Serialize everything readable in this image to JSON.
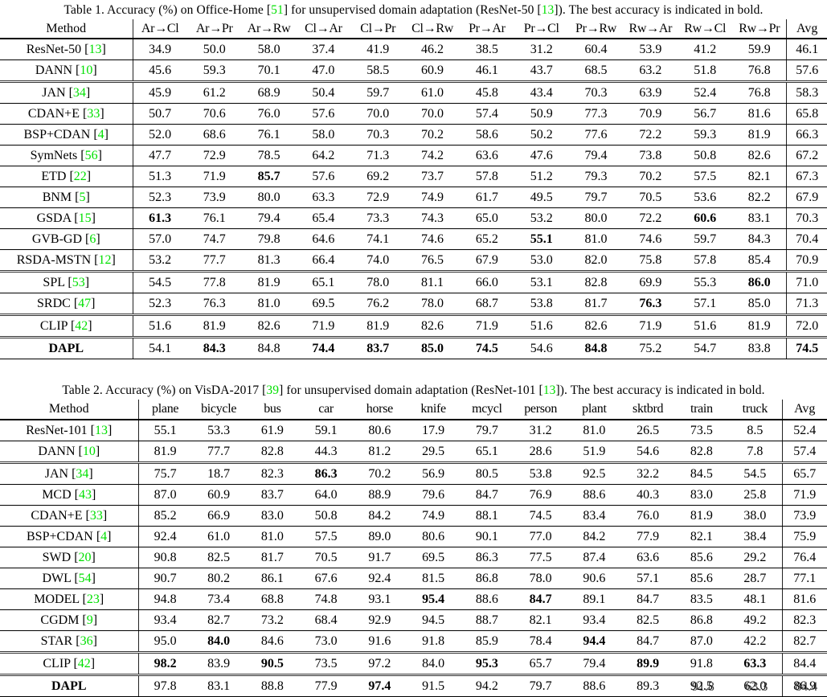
{
  "page": {
    "background": "#ffffff",
    "text_color": "#000000",
    "citation_color": "#00e000"
  },
  "tables": [
    {
      "id": "table1",
      "caption_parts": [
        {
          "t": "Table 1. Accuracy (%) on Office-Home ["
        },
        {
          "cite": "51"
        },
        {
          "t": "] for unsupervised domain adaptation (ResNet-50 ["
        },
        {
          "cite": "13"
        },
        {
          "t": "]). The best accuracy is indicated in bold."
        }
      ],
      "method_header": "Method",
      "avg_header": "Avg",
      "method_col_width": 165,
      "avg_col_width": 50,
      "columns": [
        "Ar→Cl",
        "Ar→Pr",
        "Ar→Rw",
        "Cl→Ar",
        "Cl→Pr",
        "Cl→Rw",
        "Pr→Ar",
        "Pr→Cl",
        "Pr→Rw",
        "Rw→Ar",
        "Rw→Cl",
        "Rw→Pr"
      ],
      "rows": [
        {
          "method": "ResNet-50",
          "cite": "13",
          "values": [
            "34.9",
            "50.0",
            "58.0",
            "37.4",
            "41.9",
            "46.2",
            "38.5",
            "31.2",
            "60.4",
            "53.9",
            "41.2",
            "59.9",
            "46.1"
          ],
          "bold": [],
          "sep": "thin"
        },
        {
          "method": "DANN",
          "cite": "10",
          "values": [
            "45.6",
            "59.3",
            "70.1",
            "47.0",
            "58.5",
            "60.9",
            "46.1",
            "43.7",
            "68.5",
            "63.2",
            "51.8",
            "76.8",
            "57.6"
          ],
          "bold": [],
          "sep": "double"
        },
        {
          "method": "JAN",
          "cite": "34",
          "values": [
            "45.9",
            "61.2",
            "68.9",
            "50.4",
            "59.7",
            "61.0",
            "45.8",
            "43.4",
            "70.3",
            "63.9",
            "52.4",
            "76.8",
            "58.3"
          ],
          "bold": [],
          "sep": "thin"
        },
        {
          "method": "CDAN+E",
          "cite": "33",
          "values": [
            "50.7",
            "70.6",
            "76.0",
            "57.6",
            "70.0",
            "70.0",
            "57.4",
            "50.9",
            "77.3",
            "70.9",
            "56.7",
            "81.6",
            "65.8"
          ],
          "bold": [],
          "sep": "thin"
        },
        {
          "method": "BSP+CDAN",
          "cite": "4",
          "values": [
            "52.0",
            "68.6",
            "76.1",
            "58.0",
            "70.3",
            "70.2",
            "58.6",
            "50.2",
            "77.6",
            "72.2",
            "59.3",
            "81.9",
            "66.3"
          ],
          "bold": [],
          "sep": "thin"
        },
        {
          "method": "SymNets",
          "cite": "56",
          "values": [
            "47.7",
            "72.9",
            "78.5",
            "64.2",
            "71.3",
            "74.2",
            "63.6",
            "47.6",
            "79.4",
            "73.8",
            "50.8",
            "82.6",
            "67.2"
          ],
          "bold": [],
          "sep": "thin"
        },
        {
          "method": "ETD",
          "cite": "22",
          "values": [
            "51.3",
            "71.9",
            "85.7",
            "57.6",
            "69.2",
            "73.7",
            "57.8",
            "51.2",
            "79.3",
            "70.2",
            "57.5",
            "82.1",
            "67.3"
          ],
          "bold": [
            2
          ],
          "sep": "thin"
        },
        {
          "method": "BNM",
          "cite": "5",
          "values": [
            "52.3",
            "73.9",
            "80.0",
            "63.3",
            "72.9",
            "74.9",
            "61.7",
            "49.5",
            "79.7",
            "70.5",
            "53.6",
            "82.2",
            "67.9"
          ],
          "bold": [],
          "sep": "thin"
        },
        {
          "method": "GSDA",
          "cite": "15",
          "values": [
            "61.3",
            "76.1",
            "79.4",
            "65.4",
            "73.3",
            "74.3",
            "65.0",
            "53.2",
            "80.0",
            "72.2",
            "60.6",
            "83.1",
            "70.3"
          ],
          "bold": [
            0,
            10
          ],
          "sep": "thin"
        },
        {
          "method": "GVB-GD",
          "cite": "6",
          "values": [
            "57.0",
            "74.7",
            "79.8",
            "64.6",
            "74.1",
            "74.6",
            "65.2",
            "55.1",
            "81.0",
            "74.6",
            "59.7",
            "84.3",
            "70.4"
          ],
          "bold": [
            7
          ],
          "sep": "thin"
        },
        {
          "method": "RSDA-MSTN",
          "cite": "12",
          "values": [
            "53.2",
            "77.7",
            "81.3",
            "66.4",
            "74.0",
            "76.5",
            "67.9",
            "53.0",
            "82.0",
            "75.8",
            "57.8",
            "85.4",
            "70.9"
          ],
          "bold": [],
          "sep": "double"
        },
        {
          "method": "SPL",
          "cite": "53",
          "values": [
            "54.5",
            "77.8",
            "81.9",
            "65.1",
            "78.0",
            "81.1",
            "66.0",
            "53.1",
            "82.8",
            "69.9",
            "55.3",
            "86.0",
            "71.0"
          ],
          "bold": [
            11
          ],
          "sep": "thin"
        },
        {
          "method": "SRDC",
          "cite": "47",
          "values": [
            "52.3",
            "76.3",
            "81.0",
            "69.5",
            "76.2",
            "78.0",
            "68.7",
            "53.8",
            "81.7",
            "76.3",
            "57.1",
            "85.0",
            "71.3"
          ],
          "bold": [
            9
          ],
          "sep": "double"
        },
        {
          "method": "CLIP",
          "cite": "42",
          "values": [
            "51.6",
            "81.9",
            "82.6",
            "71.9",
            "81.9",
            "82.6",
            "71.9",
            "51.6",
            "82.6",
            "71.9",
            "51.6",
            "81.9",
            "72.0"
          ],
          "bold": [],
          "sep": "double"
        },
        {
          "method": "DAPL",
          "cite": null,
          "bold_name": true,
          "values": [
            "54.1",
            "84.3",
            "84.8",
            "74.4",
            "83.7",
            "85.0",
            "74.5",
            "54.6",
            "84.8",
            "75.2",
            "54.7",
            "83.8",
            "74.5"
          ],
          "bold": [
            1,
            3,
            4,
            5,
            6,
            8,
            12
          ],
          "sep": "thin"
        }
      ]
    },
    {
      "id": "table2",
      "caption_parts": [
        {
          "t": "Table 2. Accuracy (%) on VisDA-2017 ["
        },
        {
          "cite": "39"
        },
        {
          "t": "] for unsupervised domain adaptation (ResNet-101 ["
        },
        {
          "cite": "13"
        },
        {
          "t": "]). The best accuracy is indicated in bold."
        }
      ],
      "method_header": "Method",
      "avg_header": "Avg",
      "method_col_width": 172,
      "avg_col_width": 56,
      "columns": [
        "plane",
        "bicycle",
        "bus",
        "car",
        "horse",
        "knife",
        "mcycl",
        "person",
        "plant",
        "sktbrd",
        "train",
        "truck"
      ],
      "rows": [
        {
          "method": "ResNet-101",
          "cite": "13",
          "values": [
            "55.1",
            "53.3",
            "61.9",
            "59.1",
            "80.6",
            "17.9",
            "79.7",
            "31.2",
            "81.0",
            "26.5",
            "73.5",
            "8.5",
            "52.4"
          ],
          "bold": [],
          "sep": "thin"
        },
        {
          "method": "DANN",
          "cite": "10",
          "values": [
            "81.9",
            "77.7",
            "82.8",
            "44.3",
            "81.2",
            "29.5",
            "65.1",
            "28.6",
            "51.9",
            "54.6",
            "82.8",
            "7.8",
            "57.4"
          ],
          "bold": [],
          "sep": "double"
        },
        {
          "method": "JAN",
          "cite": "34",
          "values": [
            "75.7",
            "18.7",
            "82.3",
            "86.3",
            "70.2",
            "56.9",
            "80.5",
            "53.8",
            "92.5",
            "32.2",
            "84.5",
            "54.5",
            "65.7"
          ],
          "bold": [
            3
          ],
          "sep": "thin"
        },
        {
          "method": "MCD",
          "cite": "43",
          "values": [
            "87.0",
            "60.9",
            "83.7",
            "64.0",
            "88.9",
            "79.6",
            "84.7",
            "76.9",
            "88.6",
            "40.3",
            "83.0",
            "25.8",
            "71.9"
          ],
          "bold": [],
          "sep": "thin"
        },
        {
          "method": "CDAN+E",
          "cite": "33",
          "values": [
            "85.2",
            "66.9",
            "83.0",
            "50.8",
            "84.2",
            "74.9",
            "88.1",
            "74.5",
            "83.4",
            "76.0",
            "81.9",
            "38.0",
            "73.9"
          ],
          "bold": [],
          "sep": "thin"
        },
        {
          "method": "BSP+CDAN",
          "cite": "4",
          "values": [
            "92.4",
            "61.0",
            "81.0",
            "57.5",
            "89.0",
            "80.6",
            "90.1",
            "77.0",
            "84.2",
            "77.9",
            "82.1",
            "38.4",
            "75.9"
          ],
          "bold": [],
          "sep": "thin"
        },
        {
          "method": "SWD",
          "cite": "20",
          "values": [
            "90.8",
            "82.5",
            "81.7",
            "70.5",
            "91.7",
            "69.5",
            "86.3",
            "77.5",
            "87.4",
            "63.6",
            "85.6",
            "29.2",
            "76.4"
          ],
          "bold": [],
          "sep": "thin"
        },
        {
          "method": "DWL",
          "cite": "54",
          "values": [
            "90.7",
            "80.2",
            "86.1",
            "67.6",
            "92.4",
            "81.5",
            "86.8",
            "78.0",
            "90.6",
            "57.1",
            "85.6",
            "28.7",
            "77.1"
          ],
          "bold": [],
          "sep": "thin"
        },
        {
          "method": "MODEL",
          "cite": "23",
          "values": [
            "94.8",
            "73.4",
            "68.8",
            "74.8",
            "93.1",
            "95.4",
            "88.6",
            "84.7",
            "89.1",
            "84.7",
            "83.5",
            "48.1",
            "81.6"
          ],
          "bold": [
            5,
            7
          ],
          "sep": "thin"
        },
        {
          "method": "CGDM",
          "cite": "9",
          "values": [
            "93.4",
            "82.7",
            "73.2",
            "68.4",
            "92.9",
            "94.5",
            "88.7",
            "82.1",
            "93.4",
            "82.5",
            "86.8",
            "49.2",
            "82.3"
          ],
          "bold": [],
          "sep": "thin"
        },
        {
          "method": "STAR",
          "cite": "36",
          "values": [
            "95.0",
            "84.0",
            "84.6",
            "73.0",
            "91.6",
            "91.8",
            "85.9",
            "78.4",
            "94.4",
            "84.7",
            "87.0",
            "42.2",
            "82.7"
          ],
          "bold": [
            1,
            8
          ],
          "sep": "double"
        },
        {
          "method": "CLIP",
          "cite": "42",
          "values": [
            "98.2",
            "83.9",
            "90.5",
            "73.5",
            "97.2",
            "84.0",
            "95.3",
            "65.7",
            "79.4",
            "89.9",
            "91.8",
            "63.3",
            "84.4"
          ],
          "bold": [
            0,
            2,
            6,
            9,
            11
          ],
          "sep": "double"
        },
        {
          "method": "DAPL",
          "cite": null,
          "bold_name": true,
          "values": [
            "97.8",
            "83.1",
            "88.8",
            "77.9",
            "97.4",
            "91.5",
            "94.2",
            "79.7",
            "88.6",
            "89.3",
            "92.5",
            "62.0",
            "86.9"
          ],
          "bold": [
            4
          ],
          "sep": "thin",
          "ghosts": {
            "10": "91.8",
            "11": "63.3",
            "12": "84.4"
          }
        }
      ]
    }
  ]
}
